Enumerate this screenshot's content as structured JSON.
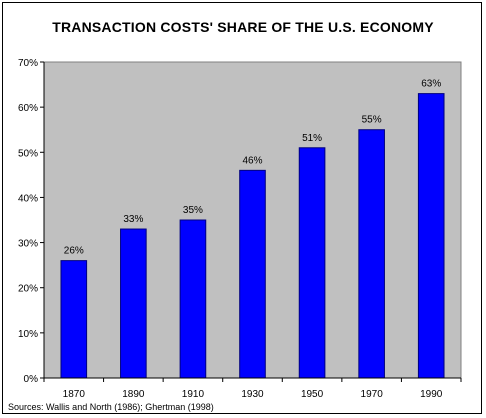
{
  "chart_data": {
    "type": "bar",
    "title": "TRANSACTION COSTS' SHARE OF THE U.S. ECONOMY",
    "source": "Sources: Wallis and North (1986); Ghertman (1998)",
    "categories": [
      "1870",
      "1890",
      "1910",
      "1930",
      "1950",
      "1970",
      "1990"
    ],
    "values": [
      26,
      33,
      35,
      46,
      51,
      55,
      63
    ],
    "data_labels": [
      "26%",
      "33%",
      "35%",
      "46%",
      "51%",
      "55%",
      "63%"
    ],
    "ylim": [
      0,
      70
    ],
    "yticks": [
      0,
      10,
      20,
      30,
      40,
      50,
      60,
      70
    ],
    "ytick_labels": [
      "0%",
      "10%",
      "20%",
      "30%",
      "40%",
      "50%",
      "60%",
      "70%"
    ],
    "xlabel": "",
    "ylabel": "",
    "grid": false,
    "legend": "none",
    "colors": {
      "bar_fill": "#0000FF",
      "bar_stroke": "#000080",
      "plot_background": "#C0C0C0"
    }
  }
}
